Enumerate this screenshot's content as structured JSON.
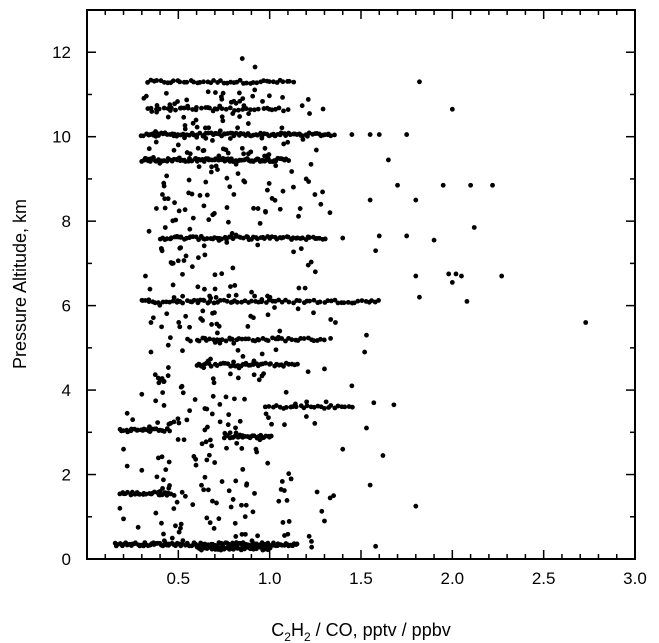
{
  "chart_data": {
    "type": "scatter",
    "xlabel": "C₂H₂ / CO,  pptv / ppbv",
    "xlabel_parts": {
      "pre": "C",
      "sub1": "2",
      "mid": "H",
      "sub2": "2",
      "post": " / CO,  pptv / ppbv"
    },
    "ylabel": "Pressure Altitude,  km",
    "xlim": [
      0.0,
      3.0
    ],
    "ylim": [
      0,
      13
    ],
    "xticks": [
      0.5,
      1.0,
      1.5,
      2.0,
      2.5,
      3.0
    ],
    "xtick_labels": [
      "0.5",
      "1.0",
      "1.5",
      "2.0",
      "2.5",
      "3.0"
    ],
    "yticks": [
      0,
      2,
      4,
      6,
      8,
      10,
      12
    ],
    "ytick_labels": [
      "0",
      "2",
      "4",
      "6",
      "8",
      "10",
      "12"
    ],
    "grid": false,
    "marker_color": "#000000",
    "level_bands": [
      {
        "y": 11.3,
        "x_start": 0.33,
        "x_end": 1.13,
        "count": 45
      },
      {
        "y": 10.65,
        "x_start": 0.33,
        "x_end": 1.1,
        "count": 35
      },
      {
        "y": 10.05,
        "x_start": 0.3,
        "x_end": 1.35,
        "count": 90
      },
      {
        "y": 9.45,
        "x_start": 0.3,
        "x_end": 1.1,
        "count": 90
      },
      {
        "y": 7.6,
        "x_start": 0.4,
        "x_end": 1.3,
        "count": 70
      },
      {
        "y": 6.1,
        "x_start": 0.3,
        "x_end": 1.6,
        "count": 70
      },
      {
        "y": 5.2,
        "x_start": 0.6,
        "x_end": 1.3,
        "count": 40
      },
      {
        "y": 4.6,
        "x_start": 0.6,
        "x_end": 1.15,
        "count": 40
      },
      {
        "y": 3.6,
        "x_start": 1.0,
        "x_end": 1.45,
        "count": 25
      },
      {
        "y": 3.05,
        "x_start": 0.18,
        "x_end": 0.45,
        "count": 25
      },
      {
        "y": 2.9,
        "x_start": 0.75,
        "x_end": 1.0,
        "count": 25
      },
      {
        "y": 1.55,
        "x_start": 0.18,
        "x_end": 0.45,
        "count": 25
      },
      {
        "y": 0.35,
        "x_start": 0.15,
        "x_end": 1.15,
        "count": 110
      },
      {
        "y": 0.25,
        "x_start": 0.6,
        "x_end": 1.0,
        "count": 50
      }
    ],
    "scatter_points": [
      [
        0.85,
        11.85
      ],
      [
        0.92,
        11.65
      ],
      [
        1.82,
        11.3
      ],
      [
        2.0,
        10.65
      ],
      [
        1.45,
        10.05
      ],
      [
        1.55,
        10.05
      ],
      [
        1.6,
        10.05
      ],
      [
        1.75,
        10.05
      ],
      [
        1.65,
        9.45
      ],
      [
        1.7,
        8.85
      ],
      [
        1.95,
        8.85
      ],
      [
        2.1,
        8.85
      ],
      [
        2.22,
        8.85
      ],
      [
        1.55,
        8.5
      ],
      [
        1.8,
        8.5
      ],
      [
        1.6,
        7.65
      ],
      [
        1.75,
        7.65
      ],
      [
        1.9,
        7.55
      ],
      [
        2.12,
        7.85
      ],
      [
        1.58,
        7.3
      ],
      [
        1.8,
        6.7
      ],
      [
        1.98,
        6.75
      ],
      [
        2.02,
        6.75
      ],
      [
        2.05,
        6.7
      ],
      [
        2.27,
        6.7
      ],
      [
        2.0,
        6.55
      ],
      [
        1.82,
        6.2
      ],
      [
        2.08,
        6.1
      ],
      [
        2.73,
        5.6
      ],
      [
        1.53,
        5.3
      ],
      [
        1.52,
        4.9
      ],
      [
        1.45,
        4.1
      ],
      [
        1.57,
        3.7
      ],
      [
        1.68,
        3.65
      ],
      [
        1.53,
        3.1
      ],
      [
        1.62,
        2.45
      ],
      [
        1.55,
        1.75
      ],
      [
        1.8,
        1.25
      ],
      [
        1.58,
        0.3
      ],
      [
        1.23,
        0.28
      ],
      [
        1.3,
        0.9
      ],
      [
        1.35,
        1.5
      ],
      [
        1.4,
        2.6
      ],
      [
        1.3,
        4.5
      ],
      [
        1.36,
        5.6
      ],
      [
        1.4,
        7.6
      ],
      [
        1.33,
        8.2
      ],
      [
        1.28,
        8.4
      ],
      [
        1.2,
        9.0
      ],
      [
        1.25,
        6.8
      ],
      [
        0.22,
        3.45
      ],
      [
        0.25,
        3.3
      ],
      [
        0.2,
        2.6
      ],
      [
        0.22,
        2.2
      ],
      [
        0.18,
        1.2
      ],
      [
        0.2,
        0.95
      ],
      [
        0.28,
        0.75
      ],
      [
        0.3,
        2.1
      ],
      [
        0.35,
        4.9
      ],
      [
        0.32,
        6.7
      ],
      [
        0.38,
        8.3
      ],
      [
        0.42,
        8.9
      ],
      [
        0.35,
        5.6
      ],
      [
        0.42,
        4.2
      ],
      [
        0.3,
        3.9
      ]
    ],
    "random_cloud": {
      "count": 430,
      "seed": 12345,
      "x_range": [
        0.15,
        1.4
      ],
      "y_range": [
        0.4,
        11.2
      ]
    }
  }
}
